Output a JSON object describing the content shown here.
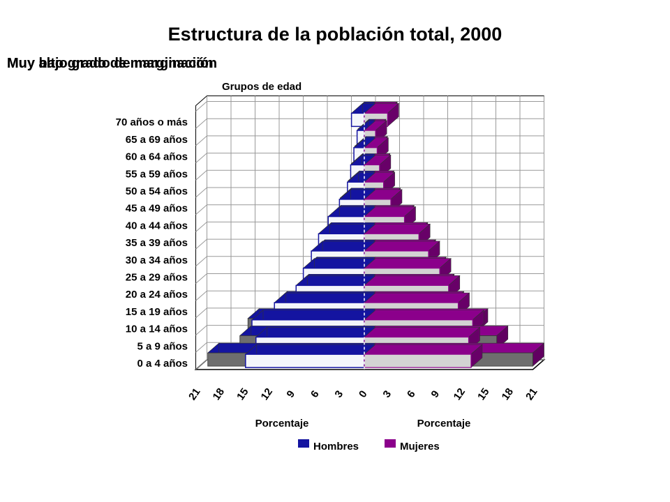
{
  "page": {
    "title": "Estructura de la población total, 2000",
    "subtitle_a": "Muy bajo grado de marginación",
    "subtitle_b": "Muy alto grado de marginación"
  },
  "chart_data": {
    "type": "bar",
    "orientation": "horizontal-pyramid",
    "y_axis_label": "Grupos de edad",
    "x_axis_label_left": "Porcentaje",
    "x_axis_label_right": "Porcentaje",
    "x_ticks": [
      21,
      18,
      15,
      12,
      9,
      6,
      3,
      0,
      3,
      6,
      9,
      12,
      15,
      18,
      21
    ],
    "xlim": [
      0,
      21
    ],
    "categories": [
      "0 a 4 años",
      "5 a 9 años",
      "10 a 14 años",
      "15 a 19 años",
      "20 a 24 años",
      "25 a 29 años",
      "30 a 34 años",
      "35 a 39 años",
      "40 a 44 años",
      "45 a 49 años",
      "50 a 54 años",
      "55 a 59 años",
      "60 a 64 años",
      "65 a 69 años",
      "70 años o más"
    ],
    "grid": true,
    "legend_position": "bottom",
    "legend": [
      "Hombres",
      "Mujeres"
    ],
    "series": [
      {
        "name": "Hombres",
        "group": "Muy bajo grado de marginación",
        "side": "left",
        "color": "#1414a0",
        "values": [
          14.8,
          13.5,
          14.0,
          11.2,
          8.5,
          7.6,
          6.6,
          5.7,
          4.5,
          3.1,
          2.1,
          1.7,
          1.3,
          0.9,
          1.6
        ]
      },
      {
        "name": "Mujeres",
        "group": "Muy bajo grado de marginación",
        "side": "right",
        "color": "#8b008b",
        "values": [
          13.3,
          13.0,
          13.5,
          11.7,
          10.5,
          9.4,
          8.0,
          6.8,
          5.0,
          3.3,
          2.4,
          1.9,
          1.6,
          1.4,
          2.9
        ]
      },
      {
        "name": "Hombres",
        "group": "Muy alto grado de marginación",
        "side": "left",
        "color": "#555555",
        "values": [
          19.5,
          15.5,
          14.5,
          11.0,
          8.3,
          7.3,
          6.3,
          5.5,
          4.3,
          3.0,
          2.0,
          1.6,
          1.2,
          0.8,
          1.4
        ]
      },
      {
        "name": "Mujeres",
        "group": "Muy alto grado de marginación",
        "side": "right",
        "color": "#555555",
        "values": [
          21.0,
          16.5,
          14.0,
          11.0,
          9.8,
          8.8,
          7.5,
          6.5,
          4.8,
          3.1,
          2.3,
          1.8,
          1.5,
          1.3,
          2.7
        ]
      }
    ]
  }
}
